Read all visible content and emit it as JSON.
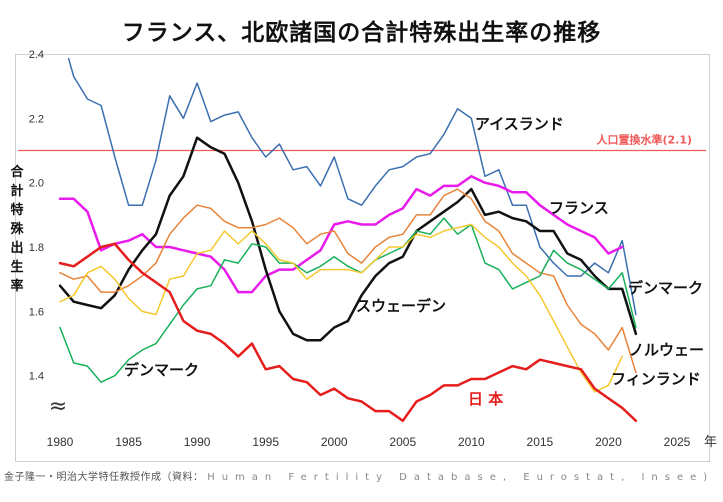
{
  "chart_data": {
    "type": "line",
    "title": "フランス、北欧諸国の合計特殊出生率の推移",
    "ylabel_chars": [
      "合",
      "計",
      "特",
      "殊",
      "出",
      "生",
      "率"
    ],
    "xlabel": "年",
    "xlim": [
      1980,
      2025
    ],
    "ylim": [
      1.25,
      2.4
    ],
    "x_ticks": [
      1980,
      1985,
      1990,
      1995,
      2000,
      2005,
      2010,
      2015,
      2020,
      2025
    ],
    "y_ticks": [
      1.4,
      1.6,
      1.8,
      2.0,
      2.2,
      2.4
    ],
    "y_tick_labels": [
      "1.4",
      "1.6",
      "1.8",
      "2.0",
      "2.2",
      "2.4"
    ],
    "axis_break_mark": "≈",
    "grid": false,
    "reference_line": {
      "value": 2.1,
      "label": "人口置換水準(2.1)",
      "color": "#f05a5a"
    },
    "series": [
      {
        "name": "アイスランド",
        "color": "#3a6fb0",
        "width": 1.5,
        "x": [
          1980,
          1981,
          1982,
          1983,
          1984,
          1985,
          1986,
          1987,
          1988,
          1989,
          1990,
          1991,
          1992,
          1993,
          1994,
          1995,
          1996,
          1997,
          1998,
          1999,
          2000,
          2001,
          2002,
          2003,
          2004,
          2005,
          2006,
          2007,
          2008,
          2009,
          2010,
          2011,
          2012,
          2013,
          2014,
          2015,
          2016,
          2017,
          2018,
          2019,
          2020,
          2021,
          2022
        ],
        "values": [
          2.48,
          2.33,
          2.26,
          2.24,
          2.08,
          1.93,
          1.93,
          2.07,
          2.27,
          2.2,
          2.31,
          2.19,
          2.21,
          2.22,
          2.14,
          2.08,
          2.12,
          2.04,
          2.05,
          1.99,
          2.08,
          1.95,
          1.93,
          1.99,
          2.04,
          2.05,
          2.08,
          2.09,
          2.15,
          2.23,
          2.2,
          2.02,
          2.04,
          1.93,
          1.93,
          1.8,
          1.75,
          1.71,
          1.71,
          1.75,
          1.72,
          1.82,
          1.59
        ]
      },
      {
        "name": "フランス",
        "color": "#e81aec",
        "width": 2.5,
        "x": [
          1980,
          1981,
          1982,
          1983,
          1984,
          1985,
          1986,
          1987,
          1988,
          1989,
          1990,
          1991,
          1992,
          1993,
          1994,
          1995,
          1996,
          1997,
          1998,
          1999,
          2000,
          2001,
          2002,
          2003,
          2004,
          2005,
          2006,
          2007,
          2008,
          2009,
          2010,
          2011,
          2012,
          2013,
          2014,
          2015,
          2016,
          2017,
          2018,
          2019,
          2020,
          2021
        ],
        "values": [
          1.95,
          1.95,
          1.91,
          1.79,
          1.81,
          1.82,
          1.84,
          1.8,
          1.8,
          1.79,
          1.78,
          1.77,
          1.73,
          1.66,
          1.66,
          1.71,
          1.73,
          1.73,
          1.76,
          1.79,
          1.87,
          1.88,
          1.87,
          1.87,
          1.9,
          1.92,
          1.98,
          1.96,
          1.99,
          1.99,
          2.02,
          2.0,
          1.99,
          1.97,
          1.97,
          1.93,
          1.9,
          1.87,
          1.85,
          1.83,
          1.78,
          1.8
        ]
      },
      {
        "name": "スウェーデン",
        "color": "#111111",
        "width": 2.5,
        "x": [
          1980,
          1981,
          1982,
          1983,
          1984,
          1985,
          1986,
          1987,
          1988,
          1989,
          1990,
          1991,
          1992,
          1993,
          1994,
          1995,
          1996,
          1997,
          1998,
          1999,
          2000,
          2001,
          2002,
          2003,
          2004,
          2005,
          2006,
          2007,
          2008,
          2009,
          2010,
          2011,
          2012,
          2013,
          2014,
          2015,
          2016,
          2017,
          2018,
          2019,
          2020,
          2021,
          2022
        ],
        "values": [
          1.68,
          1.63,
          1.62,
          1.61,
          1.65,
          1.73,
          1.79,
          1.84,
          1.96,
          2.02,
          2.14,
          2.11,
          2.09,
          2.0,
          1.88,
          1.73,
          1.6,
          1.53,
          1.51,
          1.51,
          1.55,
          1.57,
          1.65,
          1.71,
          1.75,
          1.77,
          1.85,
          1.88,
          1.91,
          1.94,
          1.98,
          1.9,
          1.91,
          1.89,
          1.88,
          1.85,
          1.85,
          1.78,
          1.76,
          1.71,
          1.67,
          1.67,
          1.53
        ]
      },
      {
        "name": "ノルウェー",
        "color": "#e8843a",
        "width": 1.5,
        "x": [
          1980,
          1981,
          1982,
          1983,
          1984,
          1985,
          1986,
          1987,
          1988,
          1989,
          1990,
          1991,
          1992,
          1993,
          1994,
          1995,
          1996,
          1997,
          1998,
          1999,
          2000,
          2001,
          2002,
          2003,
          2004,
          2005,
          2006,
          2007,
          2008,
          2009,
          2010,
          2011,
          2012,
          2013,
          2014,
          2015,
          2016,
          2017,
          2018,
          2019,
          2020,
          2021,
          2022
        ],
        "values": [
          1.72,
          1.7,
          1.71,
          1.66,
          1.66,
          1.68,
          1.71,
          1.75,
          1.84,
          1.89,
          1.93,
          1.92,
          1.88,
          1.86,
          1.86,
          1.87,
          1.89,
          1.86,
          1.81,
          1.84,
          1.85,
          1.78,
          1.75,
          1.8,
          1.83,
          1.84,
          1.9,
          1.9,
          1.96,
          1.98,
          1.95,
          1.88,
          1.85,
          1.78,
          1.75,
          1.72,
          1.71,
          1.62,
          1.56,
          1.53,
          1.48,
          1.55,
          1.41
        ]
      },
      {
        "name": "デンマーク",
        "color": "#19b05a",
        "width": 1.5,
        "x": [
          1980,
          1981,
          1982,
          1983,
          1984,
          1985,
          1986,
          1987,
          1988,
          1989,
          1990,
          1991,
          1992,
          1993,
          1994,
          1995,
          1996,
          1997,
          1998,
          1999,
          2000,
          2001,
          2002,
          2003,
          2004,
          2005,
          2006,
          2007,
          2008,
          2009,
          2010,
          2011,
          2012,
          2013,
          2014,
          2015,
          2016,
          2017,
          2018,
          2019,
          2020,
          2021,
          2022
        ],
        "values": [
          1.55,
          1.44,
          1.43,
          1.38,
          1.4,
          1.45,
          1.48,
          1.5,
          1.56,
          1.62,
          1.67,
          1.68,
          1.76,
          1.75,
          1.81,
          1.8,
          1.75,
          1.75,
          1.72,
          1.74,
          1.77,
          1.74,
          1.72,
          1.76,
          1.78,
          1.8,
          1.85,
          1.84,
          1.89,
          1.84,
          1.87,
          1.75,
          1.73,
          1.67,
          1.69,
          1.71,
          1.79,
          1.75,
          1.73,
          1.7,
          1.67,
          1.72,
          1.55
        ]
      },
      {
        "name": "フィンランド",
        "color": "#f5c830",
        "width": 1.5,
        "x": [
          1980,
          1981,
          1982,
          1983,
          1984,
          1985,
          1986,
          1987,
          1988,
          1989,
          1990,
          1991,
          1992,
          1993,
          1994,
          1995,
          1996,
          1997,
          1998,
          1999,
          2000,
          2001,
          2002,
          2003,
          2004,
          2005,
          2006,
          2007,
          2008,
          2009,
          2010,
          2011,
          2012,
          2013,
          2014,
          2015,
          2016,
          2017,
          2018,
          2019,
          2020,
          2021
        ],
        "values": [
          1.63,
          1.65,
          1.72,
          1.74,
          1.7,
          1.64,
          1.6,
          1.59,
          1.7,
          1.71,
          1.78,
          1.79,
          1.85,
          1.81,
          1.85,
          1.81,
          1.76,
          1.75,
          1.7,
          1.73,
          1.73,
          1.73,
          1.72,
          1.76,
          1.8,
          1.8,
          1.84,
          1.83,
          1.85,
          1.86,
          1.87,
          1.83,
          1.8,
          1.75,
          1.71,
          1.65,
          1.57,
          1.49,
          1.41,
          1.35,
          1.37,
          1.46
        ]
      },
      {
        "name": "日本",
        "color": "#e51d1d",
        "width": 2.5,
        "x": [
          1980,
          1981,
          1982,
          1983,
          1984,
          1985,
          1986,
          1987,
          1988,
          1989,
          1990,
          1991,
          1992,
          1993,
          1994,
          1995,
          1996,
          1997,
          1998,
          1999,
          2000,
          2001,
          2002,
          2003,
          2004,
          2005,
          2006,
          2007,
          2008,
          2009,
          2010,
          2011,
          2012,
          2013,
          2014,
          2015,
          2016,
          2017,
          2018,
          2019,
          2020,
          2021,
          2022
        ],
        "values": [
          1.75,
          1.74,
          1.77,
          1.8,
          1.81,
          1.76,
          1.72,
          1.69,
          1.66,
          1.57,
          1.54,
          1.53,
          1.5,
          1.46,
          1.5,
          1.42,
          1.43,
          1.39,
          1.38,
          1.34,
          1.36,
          1.33,
          1.32,
          1.29,
          1.29,
          1.26,
          1.32,
          1.34,
          1.37,
          1.37,
          1.39,
          1.39,
          1.41,
          1.43,
          1.42,
          1.45,
          1.44,
          1.43,
          1.42,
          1.36,
          1.33,
          1.3,
          1.26
        ]
      }
    ],
    "series_labels": [
      {
        "text": "アイスランド",
        "color": "#111111"
      },
      {
        "text": "フランス",
        "color": "#111111"
      },
      {
        "text": "デンマーク",
        "color": "#111111"
      },
      {
        "text": "スウェーデン",
        "color": "#111111"
      },
      {
        "text": "デンマーク",
        "color": "#111111"
      },
      {
        "text": "ノルウェー",
        "color": "#111111"
      },
      {
        "text": "フィンランド",
        "color": "#111111"
      },
      {
        "text": "日 本",
        "color": "#e51d1d"
      }
    ]
  },
  "source": {
    "prefix": "金子隆一・明治大学特任教授作成（資料：",
    "latin": "Human Fertility Database, Eurostat, Insee)"
  }
}
